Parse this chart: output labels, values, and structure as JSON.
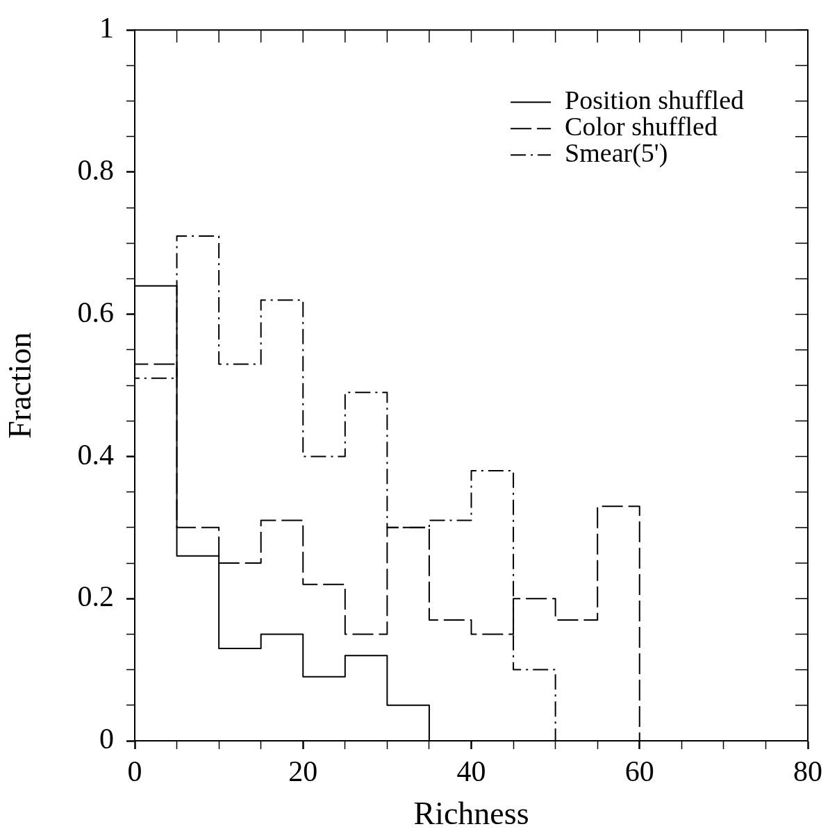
{
  "chart_data": {
    "type": "histogram",
    "xlabel": "Richness",
    "ylabel": "Fraction",
    "bins": [
      0,
      5,
      10,
      15,
      20,
      25,
      30,
      35,
      40,
      45,
      50,
      55,
      60
    ],
    "series": [
      {
        "name": "Position shuffled",
        "color": "#000000",
        "line_style": "solid",
        "values": [
          0.64,
          0.26,
          0.13,
          0.15,
          0.09,
          0.12,
          0.05,
          0,
          0,
          0,
          0,
          0
        ]
      },
      {
        "name": "Color shuffled",
        "color": "#000000",
        "line_style": "dashed",
        "values": [
          0.53,
          0.3,
          0.25,
          0.31,
          0.22,
          0.15,
          0.3,
          0.17,
          0.15,
          0.2,
          0.17,
          0.33
        ]
      },
      {
        "name": "Smear(5')",
        "color": "#000000",
        "line_style": "dashdot",
        "values": [
          0.51,
          0.71,
          0.53,
          0.62,
          0.4,
          0.49,
          0.3,
          0.31,
          0.38,
          0.1,
          0,
          0
        ]
      }
    ],
    "xlim": [
      0,
      80
    ],
    "xticks": [
      0,
      {
        "value": 5,
        "label": null
      },
      {
        "value": 10,
        "label": null
      },
      {
        "value": 15,
        "label": null
      },
      20,
      {
        "value": 25,
        "label": null
      },
      {
        "value": 30,
        "label": null
      },
      {
        "value": 35,
        "label": null
      },
      40,
      {
        "value": 45,
        "label": null
      },
      {
        "value": 50,
        "label": null
      },
      {
        "value": 55,
        "label": null
      },
      60,
      {
        "value": 65,
        "label": null
      },
      {
        "value": 70,
        "label": null
      },
      {
        "value": 75,
        "label": null
      },
      80
    ],
    "ylim": [
      0,
      1
    ],
    "yticks": [
      0,
      {
        "value": 0.05,
        "label": null
      },
      {
        "value": 0.1,
        "label": null
      },
      {
        "value": 0.15,
        "label": null
      },
      0.2,
      {
        "value": 0.25,
        "label": null
      },
      {
        "value": 0.3,
        "label": null
      },
      {
        "value": 0.35,
        "label": null
      },
      0.4,
      {
        "value": 0.45,
        "label": null
      },
      {
        "value": 0.5,
        "label": null
      },
      {
        "value": 0.55,
        "label": null
      },
      0.6,
      {
        "value": 0.65,
        "label": null
      },
      {
        "value": 0.7,
        "label": null
      },
      {
        "value": 0.75,
        "label": null
      },
      0.8,
      {
        "value": 0.85,
        "label": null
      },
      {
        "value": 0.9,
        "label": null
      },
      {
        "value": 0.95,
        "label": null
      },
      1
    ],
    "legend": "top right",
    "grid": false
  }
}
